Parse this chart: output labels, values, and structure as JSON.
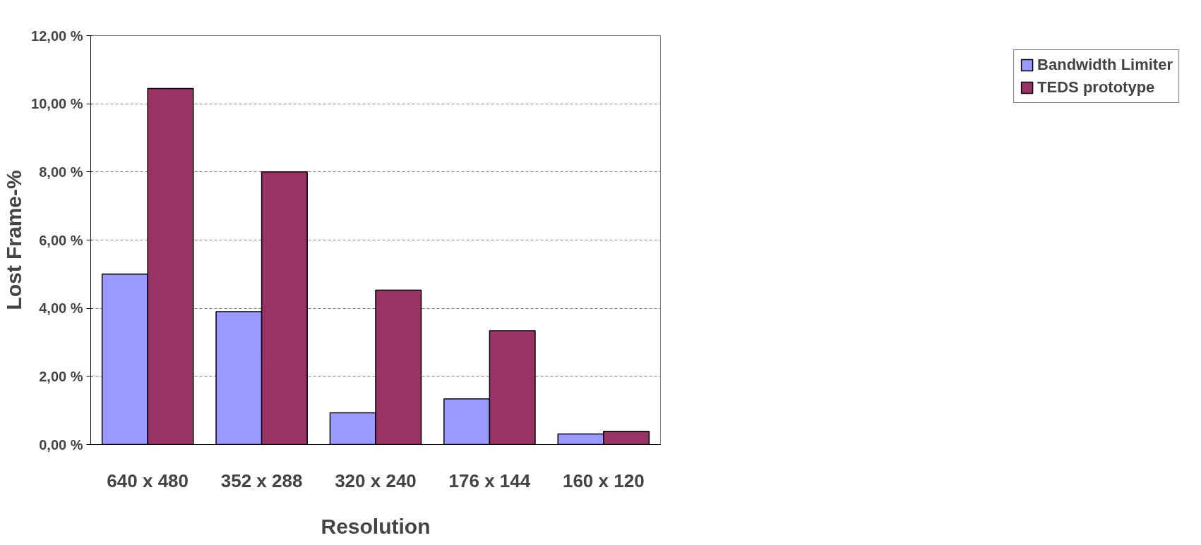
{
  "chart_data": {
    "type": "bar",
    "xlabel": "Resolution",
    "ylabel": "Lost Frame-%",
    "categories": [
      "640 x 480",
      "352 x 288",
      "320 x 240",
      "176 x 144",
      "160 x 120"
    ],
    "series": [
      {
        "name": "Bandwidth Limiter",
        "color": "#9999ff",
        "values": [
          5.0,
          3.9,
          0.93,
          1.34,
          0.31
        ]
      },
      {
        "name": "TEDS prototype",
        "color": "#993366",
        "values": [
          10.45,
          8.0,
          4.53,
          3.34,
          0.39
        ]
      }
    ],
    "ylim": [
      0,
      12
    ],
    "yticks": [
      {
        "value": 0,
        "label": "0,00 %"
      },
      {
        "value": 2,
        "label": "2,00 %"
      },
      {
        "value": 4,
        "label": "4,00 %"
      },
      {
        "value": 6,
        "label": "6,00 %"
      },
      {
        "value": 8,
        "label": "8,00 %"
      },
      {
        "value": 10,
        "label": "10,00 %"
      },
      {
        "value": 12,
        "label": "12,00 %"
      }
    ],
    "grid": "y",
    "legend": "right"
  }
}
